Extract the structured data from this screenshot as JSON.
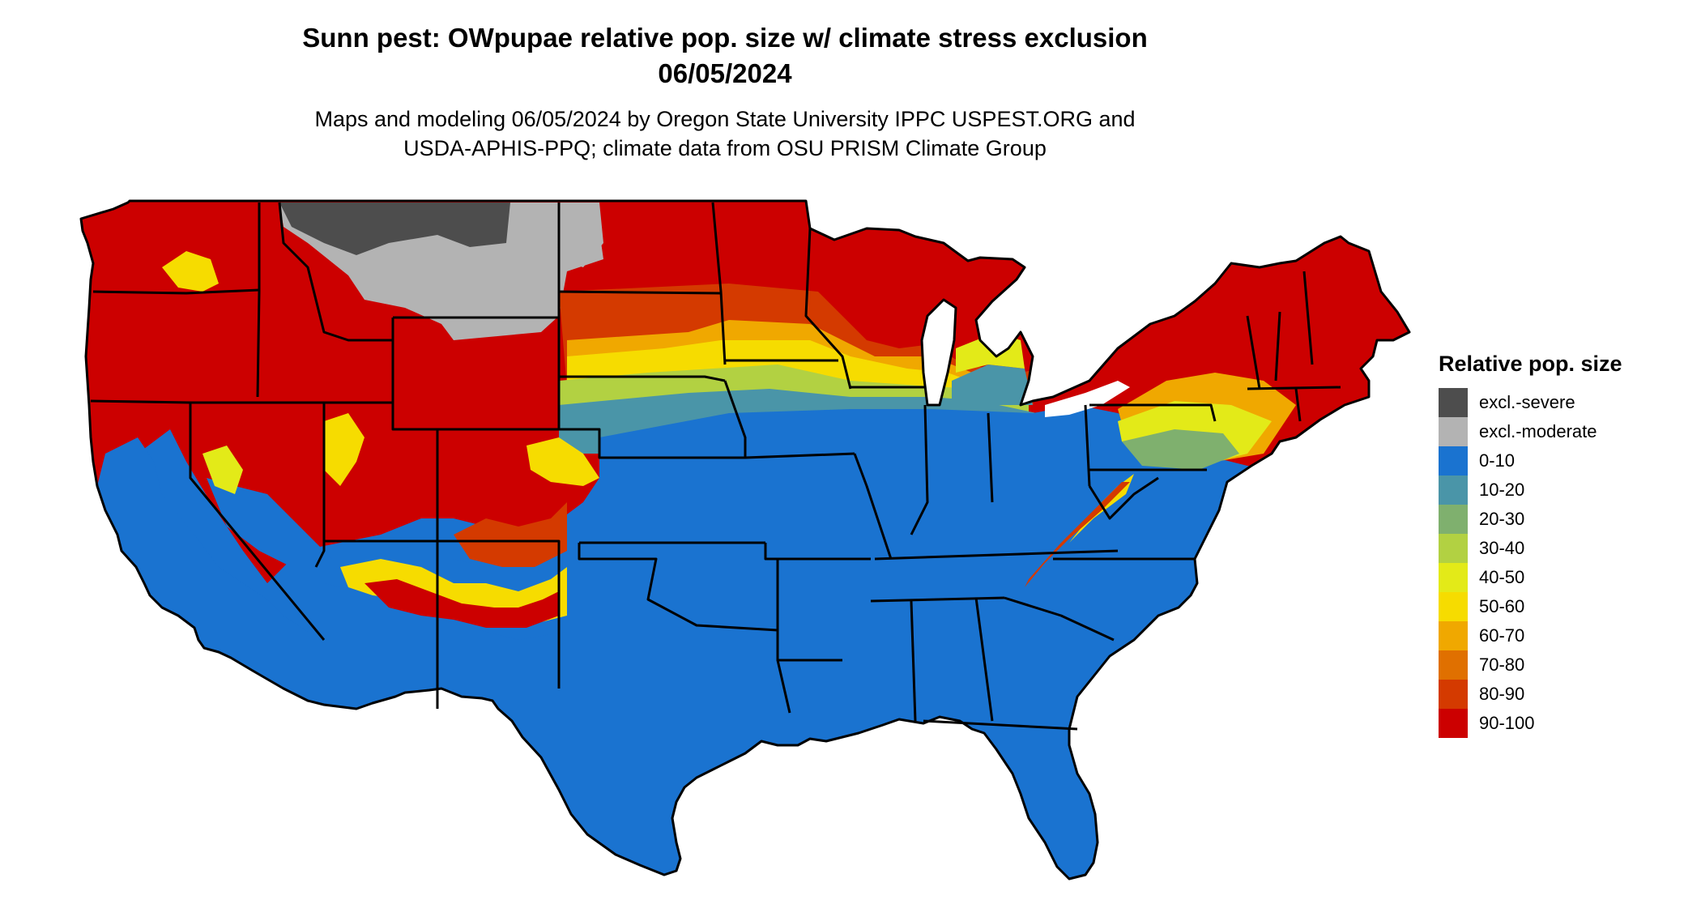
{
  "title": {
    "line1": "Sunn pest: OWpupae relative pop. size w/ climate stress exclusion",
    "line2": "06/05/2024"
  },
  "subtitle": {
    "line1": "Maps and modeling 06/05/2024 by Oregon State University IPPC USPEST.ORG and",
    "line2": "USDA-APHIS-PPQ; climate data from OSU PRISM Climate Group"
  },
  "legend": {
    "title": "Relative pop. size",
    "items": [
      {
        "label": "excl.-severe",
        "color": "#4d4d4d"
      },
      {
        "label": "excl.-moderate",
        "color": "#b3b3b3"
      },
      {
        "label": "0-10",
        "color": "#1a73d0"
      },
      {
        "label": "10-20",
        "color": "#4a95a8"
      },
      {
        "label": "20-30",
        "color": "#7fb06e"
      },
      {
        "label": "30-40",
        "color": "#b2d142"
      },
      {
        "label": "40-50",
        "color": "#e3ea18"
      },
      {
        "label": "50-60",
        "color": "#f6dc00"
      },
      {
        "label": "60-70",
        "color": "#f0a800"
      },
      {
        "label": "70-80",
        "color": "#e07000"
      },
      {
        "label": "80-90",
        "color": "#d43a00"
      },
      {
        "label": "90-100",
        "color": "#cc0000"
      }
    ]
  }
}
